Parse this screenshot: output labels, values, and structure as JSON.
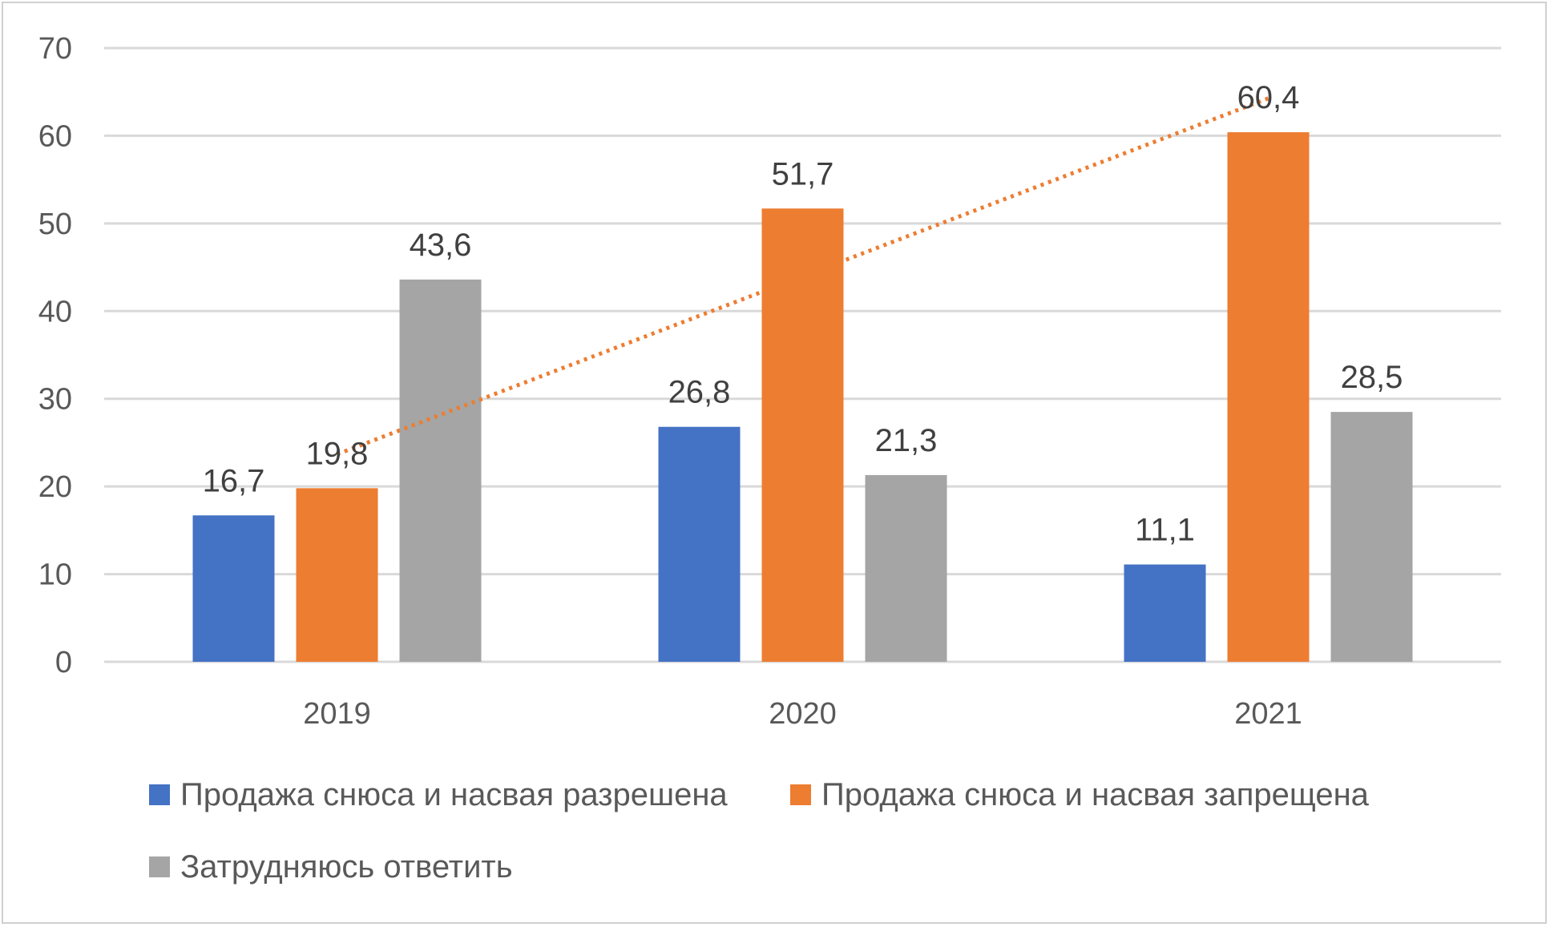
{
  "chart_data": {
    "type": "bar",
    "title": "",
    "xlabel": "",
    "ylabel": "",
    "categories": [
      "2019",
      "2020",
      "2021"
    ],
    "ylim": [
      0,
      70
    ],
    "yticks": [
      0,
      10,
      20,
      30,
      40,
      50,
      60,
      70
    ],
    "grid": true,
    "legend_position": "bottom",
    "series": [
      {
        "name": "Продажа снюса и насвая разрешена",
        "color": "#4472C4",
        "values": [
          16.7,
          26.8,
          11.1
        ],
        "labels": [
          "16,7",
          "26,8",
          "11,1"
        ]
      },
      {
        "name": "Продажа снюса и насвая запрещена",
        "color": "#ED7D31",
        "values": [
          19.8,
          51.7,
          60.4
        ],
        "labels": [
          "19,8",
          "51,7",
          "60,4"
        ]
      },
      {
        "name": "Затрудняюсь ответить",
        "color": "#A5A5A5",
        "values": [
          43.6,
          21.3,
          28.5
        ],
        "labels": [
          "43,6",
          "21,3",
          "28,5"
        ]
      }
    ],
    "trendline": {
      "series": "Продажа снюса и насвая запрещена",
      "type": "linear",
      "style": "dotted",
      "color": "#ED7D31"
    }
  }
}
